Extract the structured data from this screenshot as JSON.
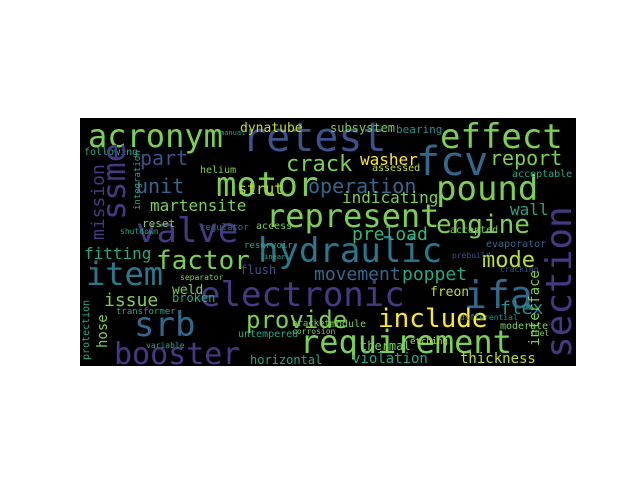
{
  "colors": {
    "background": "#000000",
    "palette": [
      "#7ad151",
      "#35b779",
      "#22a884",
      "#21918c",
      "#2a788e",
      "#31688e",
      "#3b528b",
      "#443983",
      "#482878",
      "#440154",
      "#fde725",
      "#bddf26"
    ]
  },
  "words": [
    "acronym",
    "retest",
    "effect",
    "fcv",
    "ssme",
    "motor",
    "pound",
    "section",
    "represent",
    "valve",
    "hydraulic",
    "item",
    "electronic",
    "ifa",
    "srb",
    "booster",
    "requirement",
    "provide",
    "include",
    "factor",
    "engine",
    "mode",
    "part",
    "unit",
    "crack",
    "operation",
    "report",
    "mission",
    "martensite",
    "preload",
    "movement",
    "poppet",
    "fitting",
    "issue",
    "flex",
    "hose",
    "interface",
    "washer",
    "wall",
    "indicating",
    "weld",
    "strut",
    "broken",
    "freon",
    "thermal",
    "violation",
    "thickness",
    "protection",
    "evaporator",
    "subsystem",
    "dynatube",
    "following",
    "reset",
    "flush",
    "horizontal",
    "accepted",
    "moderate",
    "bearing",
    "access",
    "acceptable",
    "regulator",
    "reservoir",
    "module",
    "bracket",
    "etching",
    "transformer",
    "untempered",
    "corrosion",
    "cracking",
    "separator",
    "assessed",
    "helium",
    "variable",
    "fuel",
    "integration",
    "differential",
    "prebuild",
    "shutdown",
    "linear",
    "manual"
  ]
}
